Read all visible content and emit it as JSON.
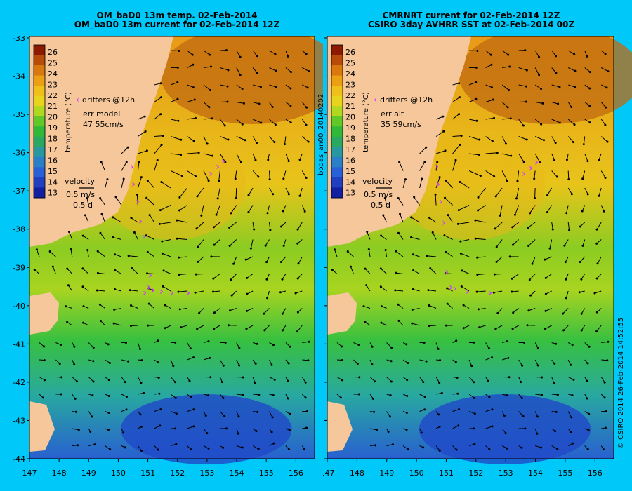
{
  "panels": [
    {
      "title_line1": "OM_baD0 13m temp. 02-Feb-2014",
      "title_line2": "OM_baD0 13m current for 02-Feb-2014 12Z",
      "colorbar_label": "temperature (°C)",
      "drifters_label": "drifters @12h",
      "err_line1": "err model",
      "err_line2": "47 55cm/s",
      "velocity_title": "velocity",
      "velocity_scale": "0.5 m/s",
      "velocity_duration": "0.5 d"
    },
    {
      "title_line1": "CMRNRT current for 02-Feb-2014 12Z",
      "title_line2": "CSIRO 3day AVHRR SST at 02-Feb-2014 00Z",
      "colorbar_label": "temperature (°C)",
      "drifters_label": "drifters @12h",
      "err_line1": "err alt",
      "err_line2": "35 59cm/s",
      "velocity_title": "velocity",
      "velocity_scale": "0.5 m/s",
      "velocity_duration": "0.5 d"
    }
  ],
  "colorbar_ticks": [
    "26",
    "25",
    "24",
    "23",
    "22",
    "21",
    "20",
    "19",
    "18",
    "17",
    "16",
    "15",
    "14",
    "13"
  ],
  "lat_ticks": [
    "-33",
    "-34",
    "-35",
    "-36",
    "-37",
    "-38",
    "-39",
    "-40",
    "-41",
    "-42",
    "-43",
    "-44"
  ],
  "lon_ticks": [
    "147",
    "148",
    "149",
    "150",
    "151",
    "152",
    "153",
    "154",
    "155",
    "156"
  ],
  "side_label": "bodas_an00_20140202",
  "credit": "© CSIRO 2014   26-Feb-2014 14:52:55",
  "colors": {
    "background": "#00c8f8",
    "land": "#f5c79a",
    "drifter": "#d23cff",
    "colorbar": [
      "#8b1a00",
      "#b84a0a",
      "#d8780e",
      "#eaa012",
      "#f0c01a",
      "#e8d41c",
      "#b0d820",
      "#60c828",
      "#30b838",
      "#28a860",
      "#2898a0",
      "#2a80c8",
      "#2860d8",
      "#2040c0",
      "#1020a0"
    ]
  }
}
